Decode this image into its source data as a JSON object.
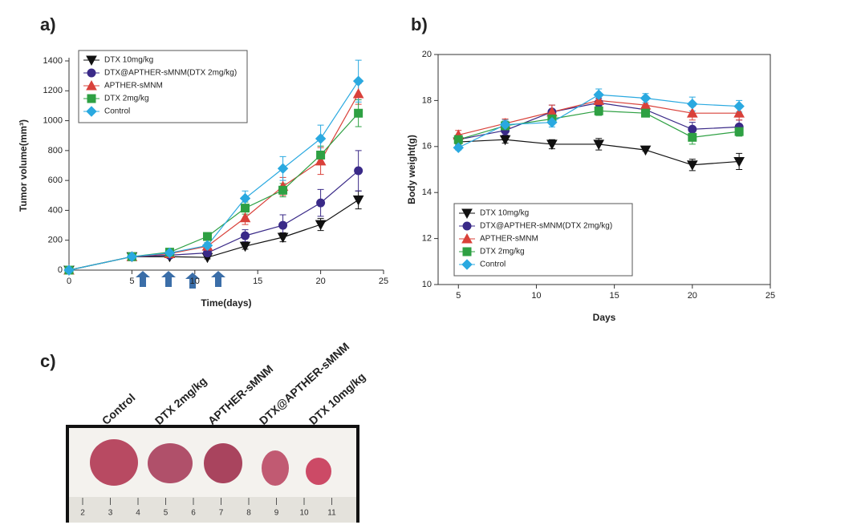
{
  "panels": [
    "a)",
    "b)",
    "c)"
  ],
  "chart_data": [
    {
      "type": "line",
      "xlabel": "Time(days)",
      "ylabel": "Tumor volume(mm³)",
      "x": [
        0,
        5,
        8,
        11,
        14,
        17,
        20,
        23
      ],
      "xlim": [
        0,
        25
      ],
      "xticks": [
        0,
        5,
        10,
        15,
        20,
        25
      ],
      "ylim": [
        0,
        1400
      ],
      "yticks": [
        0,
        200,
        400,
        600,
        800,
        1000,
        1200,
        1400
      ],
      "legend": "upper left",
      "series": [
        {
          "name": "DTX 10mg/kg",
          "color": "#111111",
          "marker": "triangle-down",
          "values": [
            0,
            90,
            90,
            85,
            160,
            220,
            305,
            470
          ],
          "errors": [
            0,
            5,
            10,
            10,
            20,
            30,
            40,
            60
          ]
        },
        {
          "name": "DTX@APTHER-sMNM(DTX 2mg/kg)",
          "color": "#3a2a88",
          "marker": "circle",
          "values": [
            0,
            90,
            100,
            115,
            230,
            300,
            450,
            665
          ],
          "errors": [
            0,
            5,
            10,
            20,
            40,
            70,
            90,
            135
          ]
        },
        {
          "name": "APTHER-sMNM",
          "color": "#d9413a",
          "marker": "triangle-up",
          "values": [
            0,
            90,
            110,
            160,
            350,
            560,
            730,
            1180
          ],
          "errors": [
            0,
            5,
            10,
            20,
            45,
            60,
            90,
            70
          ]
        },
        {
          "name": "DTX 2mg/kg",
          "color": "#2ea043",
          "marker": "square",
          "values": [
            0,
            90,
            120,
            225,
            415,
            535,
            770,
            1050
          ],
          "errors": [
            0,
            5,
            10,
            15,
            40,
            45,
            60,
            90
          ]
        },
        {
          "name": "Control",
          "color": "#2aa9e0",
          "marker": "diamond",
          "values": [
            0,
            90,
            115,
            165,
            480,
            680,
            880,
            1265
          ],
          "errors": [
            0,
            5,
            10,
            20,
            50,
            80,
            90,
            140
          ]
        }
      ]
    },
    {
      "type": "line",
      "xlabel": "Days",
      "ylabel": "Body weight(g)",
      "x": [
        5,
        8,
        11,
        14,
        17,
        20,
        23
      ],
      "xlim": [
        3.7,
        25
      ],
      "xticks": [
        5,
        10,
        15,
        20,
        25
      ],
      "ylim": [
        10,
        20
      ],
      "yticks": [
        10,
        12,
        14,
        16,
        18,
        20
      ],
      "legend": "lower left",
      "series": [
        {
          "name": "DTX 10mg/kg",
          "color": "#111111",
          "marker": "triangle-down",
          "values": [
            16.2,
            16.3,
            16.1,
            16.1,
            15.85,
            15.2,
            15.35
          ],
          "errors": [
            0.15,
            0.15,
            0.2,
            0.25,
            0.05,
            0.25,
            0.35
          ]
        },
        {
          "name": "DTX@APTHER-sMNM(DTX 2mg/kg)",
          "color": "#3a2a88",
          "marker": "circle",
          "values": [
            16.3,
            16.7,
            17.5,
            17.9,
            17.6,
            16.75,
            16.85
          ],
          "errors": [
            0.2,
            0.2,
            0.3,
            0.2,
            0.2,
            0.3,
            0.3
          ]
        },
        {
          "name": "APTHER-sMNM",
          "color": "#d9413a",
          "marker": "triangle-up",
          "values": [
            16.5,
            17.0,
            17.5,
            18.0,
            17.8,
            17.45,
            17.45
          ],
          "errors": [
            0.2,
            0.2,
            0.3,
            0.25,
            0.25,
            0.3,
            0.3
          ]
        },
        {
          "name": "DTX 2mg/kg",
          "color": "#2ea043",
          "marker": "square",
          "values": [
            16.3,
            16.9,
            17.2,
            17.55,
            17.45,
            16.4,
            16.65
          ],
          "errors": [
            0.2,
            0.2,
            0.2,
            0.2,
            0.15,
            0.3,
            0.2
          ]
        },
        {
          "name": "Control",
          "color": "#2aa9e0",
          "marker": "diamond",
          "values": [
            15.95,
            16.95,
            17.05,
            18.25,
            18.1,
            17.85,
            17.75
          ],
          "errors": [
            0.1,
            0.2,
            0.2,
            0.25,
            0.2,
            0.3,
            0.25
          ]
        }
      ]
    }
  ],
  "photo": {
    "labels": [
      "Control",
      "DTX 2mg/kg",
      "APTHER-sMNM",
      "DTX@APTHER-sMNM",
      "DTX 10mg/kg"
    ],
    "ruler": [
      2,
      3,
      4,
      5,
      6,
      7,
      8,
      9,
      10,
      11
    ]
  }
}
